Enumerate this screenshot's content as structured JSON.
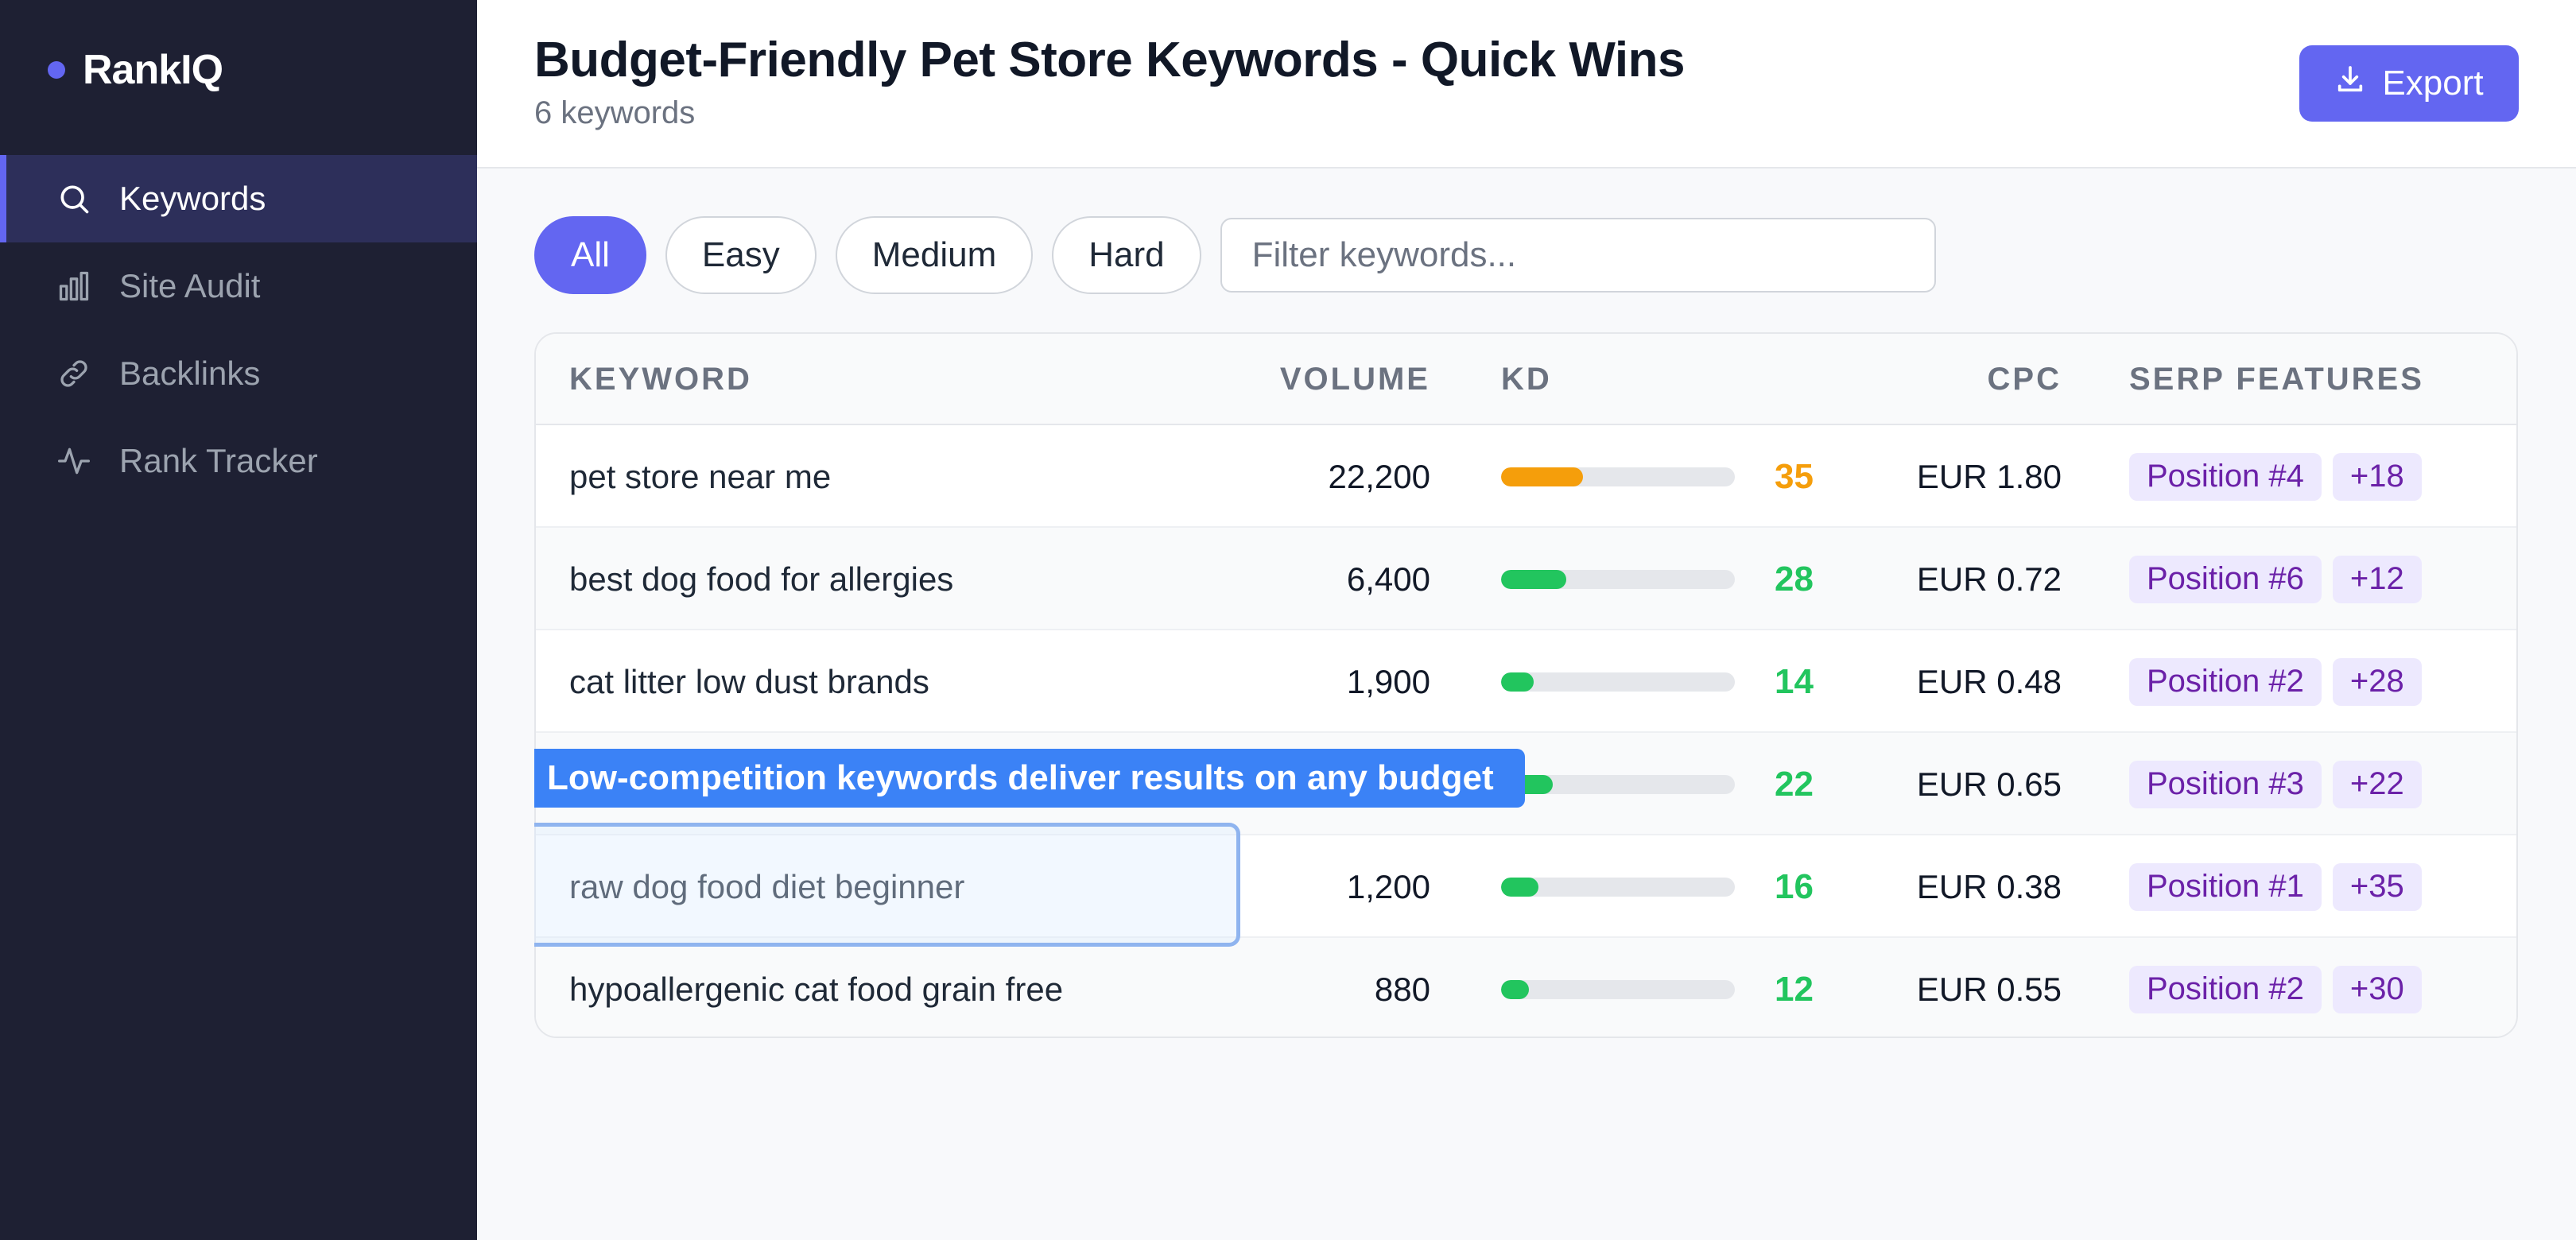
{
  "app": {
    "name": "RankIQ"
  },
  "sidebar": {
    "items": [
      {
        "label": "Keywords",
        "icon": "search-icon",
        "active": true
      },
      {
        "label": "Site Audit",
        "icon": "bar-chart-icon",
        "active": false
      },
      {
        "label": "Backlinks",
        "icon": "link-icon",
        "active": false
      },
      {
        "label": "Rank Tracker",
        "icon": "activity-icon",
        "active": false
      }
    ]
  },
  "header": {
    "title": "Budget-Friendly Pet Store Keywords - Quick Wins",
    "subtitle": "6 keywords",
    "export_label": "Export"
  },
  "filters": {
    "pills": [
      "All",
      "Easy",
      "Medium",
      "Hard"
    ],
    "active": "All",
    "search_placeholder": "Filter keywords..."
  },
  "table": {
    "columns": [
      "KEYWORD",
      "VOLUME",
      "KD",
      "CPC",
      "SERP FEATURES"
    ],
    "rows": [
      {
        "keyword": "pet store near me",
        "volume": "22,200",
        "kd": 35,
        "kd_color": "#f59e0b",
        "cpc": "EUR 1.80",
        "position": "Position #4",
        "extra": "+18"
      },
      {
        "keyword": "best dog food for allergies",
        "volume": "6,400",
        "kd": 28,
        "kd_color": "#22c55e",
        "cpc": "EUR 0.72",
        "position": "Position #6",
        "extra": "+12"
      },
      {
        "keyword": "cat litter low dust brands",
        "volume": "1,900",
        "kd": 14,
        "kd_color": "#22c55e",
        "cpc": "EUR 0.48",
        "position": "Position #2",
        "extra": "+28"
      },
      {
        "keyword": "",
        "volume": "",
        "kd": 22,
        "kd_color": "#22c55e",
        "cpc": "EUR 0.65",
        "position": "Position #3",
        "extra": "+22"
      },
      {
        "keyword": "raw dog food diet beginner",
        "volume": "1,200",
        "kd": 16,
        "kd_color": "#22c55e",
        "cpc": "EUR 0.38",
        "position": "Position #1",
        "extra": "+35"
      },
      {
        "keyword": "hypoallergenic cat food grain free",
        "volume": "880",
        "kd": 12,
        "kd_color": "#22c55e",
        "cpc": "EUR 0.55",
        "position": "Position #2",
        "extra": "+30"
      }
    ]
  },
  "callout": {
    "text": "Low-competition keywords deliver results on any budget"
  },
  "colors": {
    "accent": "#6366f1",
    "sidebar_bg": "#1e2033",
    "easy": "#22c55e",
    "medium": "#f59e0b"
  }
}
